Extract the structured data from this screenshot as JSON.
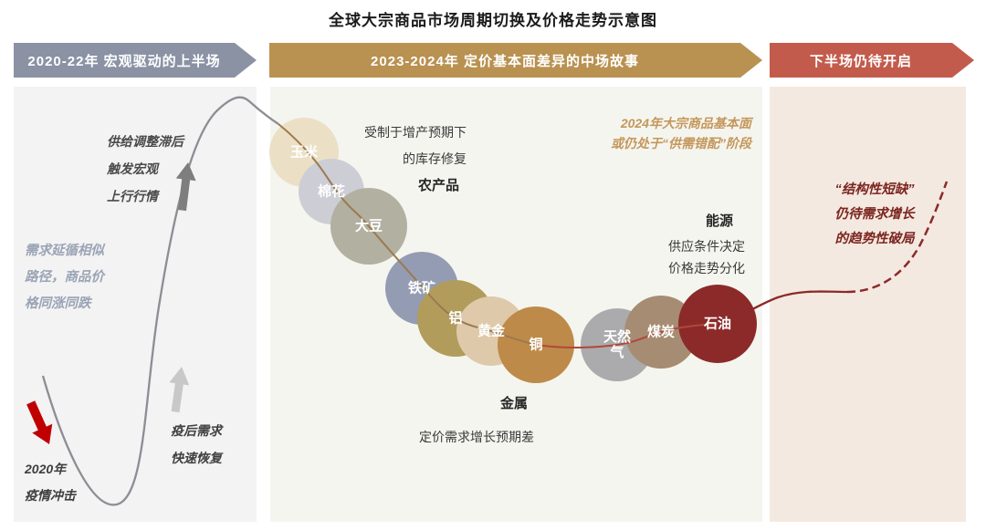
{
  "title": "全球大宗商品市场周期切换及价格走势示意图",
  "banners": [
    {
      "label": "2020-22年  宏观驱动的上半场",
      "color": "#8a92a4"
    },
    {
      "label": "2023-2024年  定价基本面差异的中场故事",
      "color": "#b99150"
    },
    {
      "label": "下半场仍待开启",
      "color": "#c35b4c"
    }
  ],
  "left_panel": {
    "supply_note": [
      "供给调整滞后",
      "触发宏观",
      "上行行情"
    ],
    "demand_note": [
      "需求延循相似",
      "路径，商品价",
      "格同涨同跌"
    ],
    "recovery_note": [
      "疫后需求",
      "快速恢复"
    ],
    "shock_note": [
      "2020年",
      "疫情冲击"
    ]
  },
  "middle_panel": {
    "agri_note": [
      "受制于增产预期下",
      "的库存修复"
    ],
    "agri_label": "农产品",
    "headline": [
      "2024年大宗商品基本面",
      "或仍处于“供需错配”阶段"
    ],
    "energy_label": "能源",
    "energy_note": [
      "供应条件决定",
      "价格走势分化"
    ],
    "metal_label": "金属",
    "metal_note": "定价需求增长预期差",
    "commodities": [
      {
        "label": "玉米",
        "color": "#ebe0c6"
      },
      {
        "label": "棉花",
        "color": "#cdcdd6"
      },
      {
        "label": "大豆",
        "color": "#b2b0a0"
      },
      {
        "label": "铁矿",
        "color": "#939cb3"
      },
      {
        "label": "铝",
        "color": "#b29c5b"
      },
      {
        "label": "黄金",
        "color": "#dfc9ab"
      },
      {
        "label": "铜",
        "color": "#be8a49"
      },
      {
        "label": "天然气",
        "color": "#ababad"
      },
      {
        "label": "煤炭",
        "color": "#a68c72"
      },
      {
        "label": "石油",
        "color": "#8c2a2a"
      }
    ]
  },
  "right_panel": {
    "note": [
      "“结构性短缺”",
      "仍待需求增长",
      "的趋势性破局"
    ]
  },
  "line_colors": {
    "macro_curve": "#8d8d95",
    "agri_metal_segment": "#9b7a4f",
    "energy_segment": "#b0473c",
    "oil_trend": "#8b2a2a",
    "shock_arrow": "#c00000",
    "macro_arrow": "#7e7e7e",
    "recovery_arrow": "#c8c8c8"
  }
}
